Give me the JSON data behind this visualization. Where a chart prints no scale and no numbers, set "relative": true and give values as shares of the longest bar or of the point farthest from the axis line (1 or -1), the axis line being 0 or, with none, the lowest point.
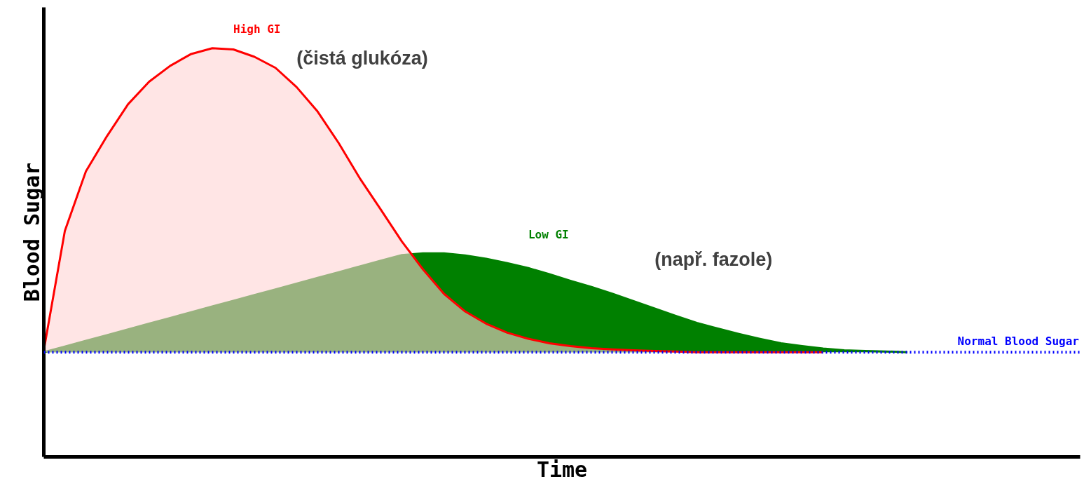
{
  "chart_data": {
    "type": "area",
    "relative": true,
    "xlabel": "Time",
    "ylabel": "Blood Sugar",
    "categories": [
      null,
      null,
      null,
      null,
      null,
      null,
      null,
      null,
      null,
      null,
      null,
      null,
      null,
      null,
      null,
      null,
      null,
      null,
      null,
      null,
      null,
      null,
      null,
      null,
      null,
      null,
      null,
      null,
      null,
      null,
      null,
      null,
      null,
      null,
      null,
      null,
      null,
      null,
      null,
      null,
      null,
      null,
      null,
      null,
      null,
      null,
      null,
      null,
      null,
      null
    ],
    "series": [
      {
        "name": "High GI",
        "color": "#ff0000",
        "values": [
          0.261,
          0.553,
          0.699,
          0.785,
          0.863,
          0.918,
          0.957,
          0.986,
          1.0,
          0.997,
          0.979,
          0.952,
          0.905,
          0.845,
          0.768,
          0.682,
          0.605,
          0.527,
          0.459,
          0.399,
          0.356,
          0.326,
          0.304,
          0.289,
          0.278,
          0.271,
          0.266,
          0.263,
          0.261,
          0.259,
          0.258,
          0.256,
          0.256,
          0.256,
          0.256,
          0.256,
          0.256,
          0.256,
          null,
          null,
          null,
          null,
          null,
          null,
          null,
          null,
          null,
          null,
          null,
          null
        ]
      },
      {
        "name": "Low GI",
        "color": "#008000",
        "values": [
          0.256,
          0.27,
          0.284,
          0.298,
          0.312,
          0.326,
          0.34,
          0.354,
          0.368,
          0.382,
          0.396,
          0.41,
          0.424,
          0.438,
          0.452,
          0.466,
          0.48,
          0.494,
          0.498,
          0.498,
          0.493,
          0.485,
          0.474,
          0.462,
          0.447,
          0.431,
          0.416,
          0.399,
          0.381,
          0.363,
          0.345,
          0.328,
          0.314,
          0.301,
          0.289,
          0.278,
          0.271,
          0.265,
          0.261,
          0.259,
          0.258,
          0.256,
          null,
          null,
          null,
          null,
          null,
          null,
          null,
          null
        ]
      }
    ],
    "ref_lines": [
      {
        "axis": "y",
        "value": 0.256,
        "label": "Normal Blood Sugar",
        "color": "#0000ff",
        "line_style": "dotted"
      }
    ],
    "annotations": [
      "(čistá glukóza)",
      "(např. fazole)"
    ]
  }
}
